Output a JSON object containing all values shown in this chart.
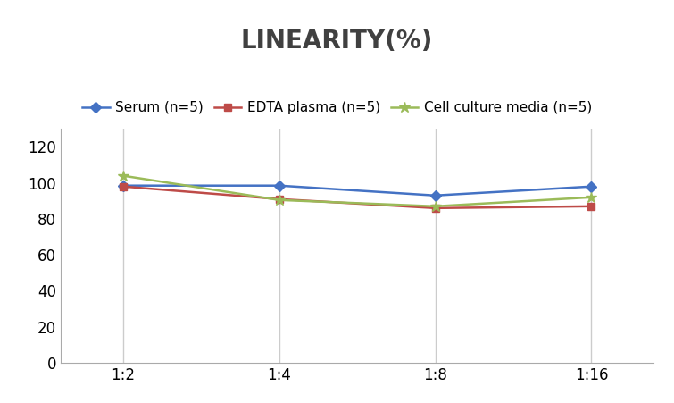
{
  "title": "LINEARITY(%)",
  "title_fontsize": 20,
  "title_fontweight": "bold",
  "x_labels": [
    "1:2",
    "1:4",
    "1:8",
    "1:16"
  ],
  "x_positions": [
    0,
    1,
    2,
    3
  ],
  "series": [
    {
      "label": "Serum (n=5)",
      "values": [
        98.5,
        98.5,
        93,
        98
      ],
      "color": "#4472C4",
      "marker": "D",
      "marker_size": 6,
      "linewidth": 1.8
    },
    {
      "label": "EDTA plasma (n=5)",
      "values": [
        98,
        91,
        86,
        87
      ],
      "color": "#BE4B48",
      "marker": "s",
      "marker_size": 6,
      "linewidth": 1.8
    },
    {
      "label": "Cell culture media (n=5)",
      "values": [
        104,
        90.5,
        87,
        92
      ],
      "color": "#9BBB59",
      "marker": "*",
      "marker_size": 9,
      "linewidth": 1.8
    }
  ],
  "ylim": [
    0,
    130
  ],
  "yticks": [
    0,
    20,
    40,
    60,
    80,
    100,
    120
  ],
  "ytick_fontsize": 12,
  "xtick_fontsize": 12,
  "legend_fontsize": 11,
  "grid_color": "#CCCCCC",
  "background_color": "#FFFFFF",
  "spine_color": "#AAAAAA"
}
